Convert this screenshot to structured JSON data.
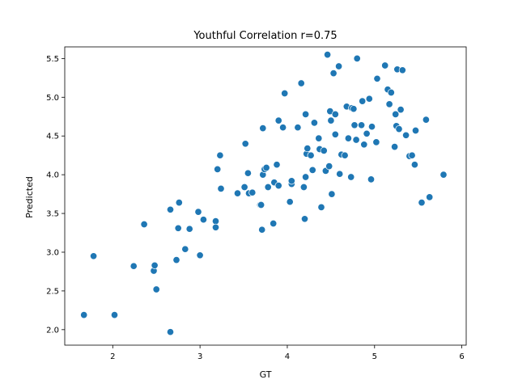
{
  "chart_data": {
    "type": "scatter",
    "title": "Youthful Correlation r=0.75",
    "xlabel": "GT",
    "ylabel": "Predicted",
    "xlim": [
      1.45,
      6.05
    ],
    "ylim": [
      1.8,
      5.65
    ],
    "xticks": [
      2,
      3,
      4,
      5,
      6
    ],
    "yticks": [
      2.0,
      2.5,
      3.0,
      3.5,
      4.0,
      4.5,
      5.0,
      5.5
    ],
    "ytick_labels": [
      "2.0",
      "2.5",
      "3.0",
      "3.5",
      "4.0",
      "4.5",
      "5.0",
      "5.5"
    ],
    "grid": false,
    "marker_color": "#1f77b4",
    "points": [
      [
        1.67,
        2.19
      ],
      [
        1.78,
        2.95
      ],
      [
        2.02,
        2.19
      ],
      [
        2.24,
        2.82
      ],
      [
        2.36,
        3.36
      ],
      [
        2.47,
        2.76
      ],
      [
        2.48,
        2.83
      ],
      [
        2.5,
        2.52
      ],
      [
        2.66,
        3.55
      ],
      [
        2.66,
        1.97
      ],
      [
        2.73,
        2.9
      ],
      [
        2.75,
        3.31
      ],
      [
        2.76,
        3.64
      ],
      [
        2.83,
        3.04
      ],
      [
        2.88,
        3.3
      ],
      [
        2.98,
        3.52
      ],
      [
        3.0,
        2.96
      ],
      [
        3.04,
        3.42
      ],
      [
        3.18,
        3.4
      ],
      [
        3.18,
        3.32
      ],
      [
        3.2,
        4.07
      ],
      [
        3.23,
        4.25
      ],
      [
        3.24,
        3.82
      ],
      [
        3.43,
        3.76
      ],
      [
        3.51,
        3.84
      ],
      [
        3.52,
        4.4
      ],
      [
        3.55,
        4.02
      ],
      [
        3.56,
        3.76
      ],
      [
        3.6,
        3.77
      ],
      [
        3.69,
        3.61
      ],
      [
        3.7,
        3.61
      ],
      [
        3.71,
        3.29
      ],
      [
        3.72,
        4.6
      ],
      [
        3.72,
        4.0
      ],
      [
        3.74,
        4.07
      ],
      [
        3.76,
        4.09
      ],
      [
        3.78,
        3.84
      ],
      [
        3.84,
        3.37
      ],
      [
        3.85,
        3.9
      ],
      [
        3.88,
        4.13
      ],
      [
        3.9,
        3.86
      ],
      [
        3.9,
        4.7
      ],
      [
        3.95,
        4.61
      ],
      [
        3.97,
        5.05
      ],
      [
        4.03,
        3.65
      ],
      [
        4.05,
        3.88
      ],
      [
        4.05,
        3.92
      ],
      [
        4.12,
        4.61
      ],
      [
        4.16,
        5.18
      ],
      [
        4.19,
        3.84
      ],
      [
        4.2,
        3.43
      ],
      [
        4.21,
        3.97
      ],
      [
        4.21,
        4.78
      ],
      [
        4.22,
        4.27
      ],
      [
        4.23,
        4.34
      ],
      [
        4.27,
        4.25
      ],
      [
        4.29,
        4.06
      ],
      [
        4.31,
        4.67
      ],
      [
        4.36,
        4.47
      ],
      [
        4.37,
        4.33
      ],
      [
        4.39,
        3.58
      ],
      [
        4.42,
        4.31
      ],
      [
        4.44,
        4.05
      ],
      [
        4.46,
        5.55
      ],
      [
        4.48,
        4.11
      ],
      [
        4.49,
        4.82
      ],
      [
        4.5,
        4.7
      ],
      [
        4.51,
        3.75
      ],
      [
        4.53,
        5.31
      ],
      [
        4.55,
        4.52
      ],
      [
        4.55,
        4.78
      ],
      [
        4.59,
        5.4
      ],
      [
        4.6,
        4.01
      ],
      [
        4.62,
        4.26
      ],
      [
        4.66,
        4.25
      ],
      [
        4.68,
        4.88
      ],
      [
        4.7,
        4.47
      ],
      [
        4.73,
        3.97
      ],
      [
        4.74,
        4.86
      ],
      [
        4.76,
        4.85
      ],
      [
        4.77,
        4.64
      ],
      [
        4.79,
        4.45
      ],
      [
        4.8,
        5.5
      ],
      [
        4.85,
        4.64
      ],
      [
        4.86,
        4.95
      ],
      [
        4.88,
        4.39
      ],
      [
        4.91,
        4.53
      ],
      [
        4.94,
        4.98
      ],
      [
        4.96,
        3.94
      ],
      [
        4.97,
        4.62
      ],
      [
        5.02,
        4.42
      ],
      [
        5.03,
        5.24
      ],
      [
        5.12,
        5.41
      ],
      [
        5.15,
        5.1
      ],
      [
        5.17,
        4.91
      ],
      [
        5.19,
        5.06
      ],
      [
        5.23,
        4.36
      ],
      [
        5.24,
        4.78
      ],
      [
        5.25,
        4.63
      ],
      [
        5.26,
        5.36
      ],
      [
        5.28,
        4.59
      ],
      [
        5.3,
        4.84
      ],
      [
        5.32,
        5.35
      ],
      [
        5.36,
        4.51
      ],
      [
        5.4,
        4.24
      ],
      [
        5.43,
        4.25
      ],
      [
        5.46,
        4.13
      ],
      [
        5.47,
        4.57
      ],
      [
        5.54,
        3.64
      ],
      [
        5.59,
        4.71
      ],
      [
        5.63,
        3.71
      ],
      [
        5.79,
        4.0
      ]
    ]
  }
}
